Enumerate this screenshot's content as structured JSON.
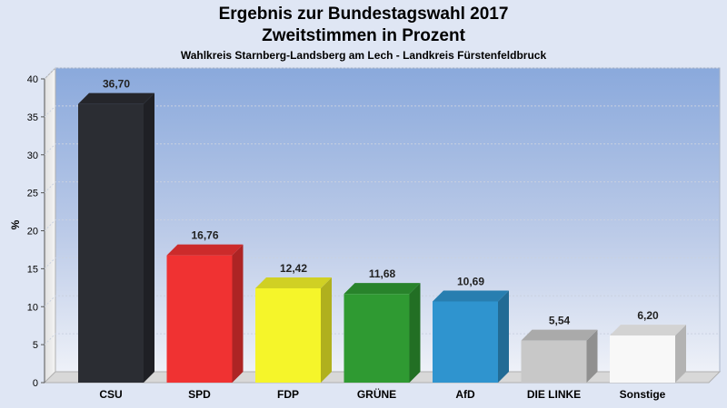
{
  "header": {
    "title": "Ergebnis zur Bundestagswahl 2017",
    "subtitle": "Zweitstimmen in Prozent",
    "district": "Wahlkreis Starnberg-Landsberg am Lech - Landkreis Fürstenfeldbruck"
  },
  "chart_data": {
    "type": "bar",
    "title": "Ergebnis zur Bundestagswahl 2017",
    "subtitle": "Zweitstimmen in Prozent",
    "ylabel": "%",
    "ylim": [
      0,
      40
    ],
    "yticks": [
      0,
      5,
      10,
      15,
      20,
      25,
      30,
      35,
      40
    ],
    "grid": true,
    "categories": [
      "CSU",
      "SPD",
      "FDP",
      "GRÜNE",
      "AfD",
      "DIE LINKE",
      "Sonstige"
    ],
    "values": [
      36.7,
      16.76,
      12.42,
      11.68,
      10.69,
      5.54,
      6.2
    ],
    "value_labels": [
      "36,70",
      "16,76",
      "12,42",
      "11,68",
      "10,69",
      "5,54",
      "6,20"
    ],
    "colors": [
      "#2b2d33",
      "#f03232",
      "#f5f52a",
      "#2f9a32",
      "#2f94cf",
      "#c8c8c8",
      "#f8f8f8"
    ]
  }
}
